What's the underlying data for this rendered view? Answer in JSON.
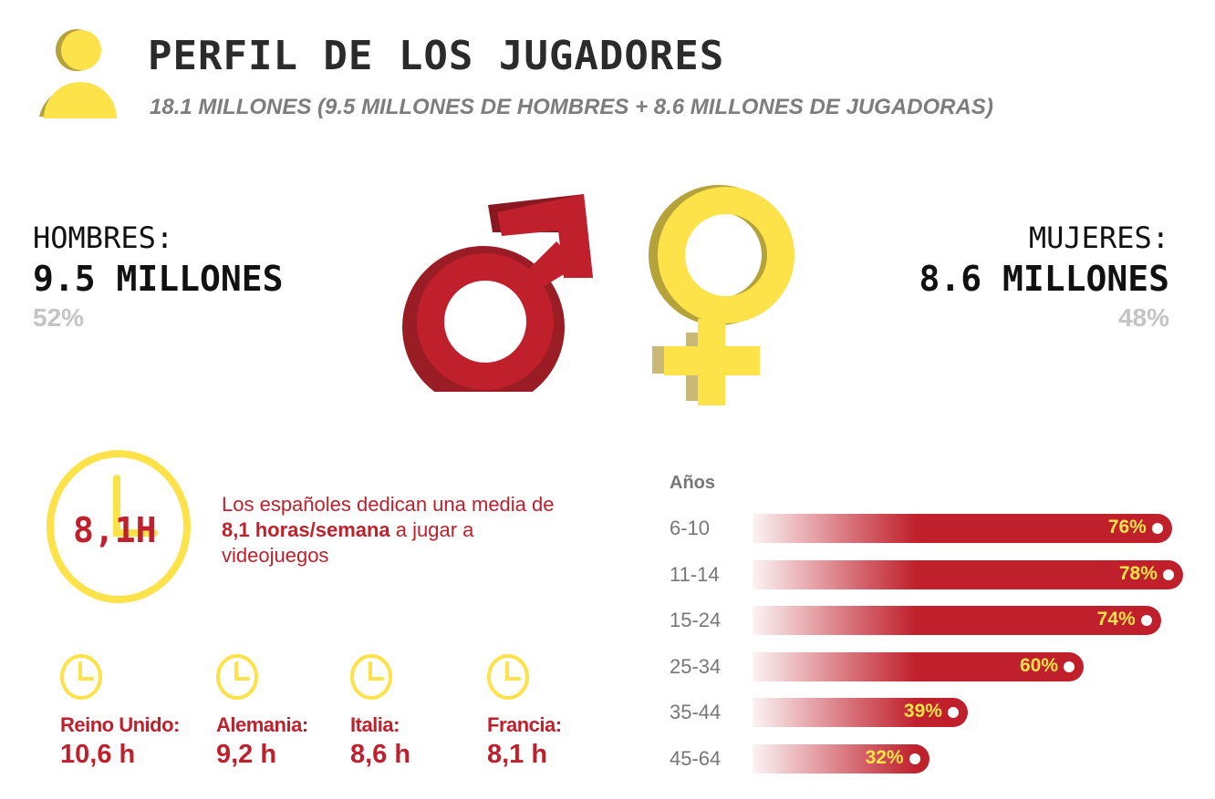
{
  "header": {
    "title": "PERFIL DE LOS JUGADORES",
    "subtitle": "18.1 MILLONES (9.5 MILLONES DE HOMBRES + 8.6 MILLONES DE JUGADORAS)",
    "icon": "person-icon"
  },
  "men": {
    "label": "HOMBRES:",
    "value": "9.5 MILLONES",
    "percent": "52%",
    "icon": "male-symbol-icon"
  },
  "women": {
    "label": "MUJERES:",
    "value": "8.6 MILLONES",
    "percent": "48%",
    "icon": "female-symbol-icon"
  },
  "hours": {
    "clock_value": "8,1H",
    "desc_pre": "Los españoles dedican una media de ",
    "desc_bold": "8,1 horas/semana",
    "desc_post": " a jugar a videojuegos",
    "countries": [
      {
        "name": "Reino Unido:",
        "value": "10,6 h"
      },
      {
        "name": "Alemania:",
        "value": "9,2 h"
      },
      {
        "name": "Italia:",
        "value": "8,6 h"
      },
      {
        "name": "Francia:",
        "value": "8,1 h"
      }
    ]
  },
  "colors": {
    "red": "#c0202c",
    "yellow": "#fde24a",
    "gray": "#777777"
  },
  "chart_data": {
    "type": "bar",
    "orientation": "horizontal",
    "ylabel": "Años",
    "categories": [
      "6-10",
      "11-14",
      "15-24",
      "25-34",
      "35-44",
      "45-64"
    ],
    "values": [
      76,
      78,
      74,
      60,
      39,
      32
    ],
    "data_labels": [
      "76%",
      "78%",
      "74%",
      "60%",
      "39%",
      "32%"
    ],
    "unit": "%",
    "grid": false
  }
}
